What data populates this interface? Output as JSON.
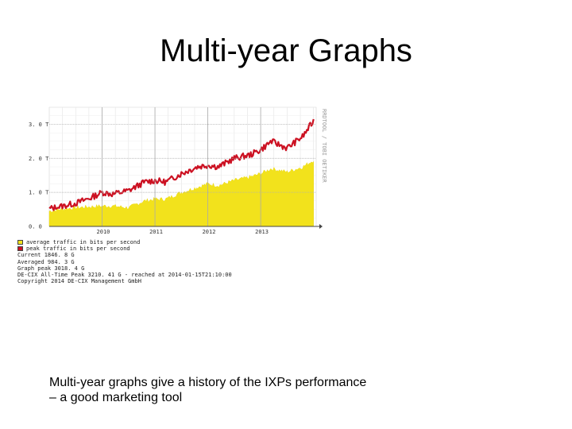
{
  "slide": {
    "title": "Multi-year Graphs",
    "caption_lines": [
      "Multi-year graphs give a history of the IXPs performance",
      "– a good marketing tool"
    ]
  },
  "chart_data": {
    "type": "area",
    "ylabel": "",
    "ylim": [
      0,
      3.5
    ],
    "y_ticks": [
      {
        "label": "0. 0",
        "value": 0
      },
      {
        "label": "1. 0 T",
        "value": 1
      },
      {
        "label": "2. 0 T",
        "value": 2
      },
      {
        "label": "3. 0 T",
        "value": 3
      }
    ],
    "x_range": [
      2009.0,
      2014.05
    ],
    "x_ticks": [
      {
        "label": "2010",
        "value": 2010
      },
      {
        "label": "2011",
        "value": 2011
      },
      {
        "label": "2012",
        "value": 2012
      },
      {
        "label": "2013",
        "value": 2013
      }
    ],
    "grid": true,
    "side_label": "RRDTOOL / TOBI OETIKER",
    "colors": {
      "average": "#f2e21c",
      "peak": "#cc1122"
    },
    "series": [
      {
        "name": "average traffic in bits per second",
        "x": [
          2009.0,
          2009.2,
          2009.5,
          2009.8,
          2010.0,
          2010.2,
          2010.5,
          2010.8,
          2011.0,
          2011.2,
          2011.5,
          2011.8,
          2012.0,
          2012.2,
          2012.5,
          2012.8,
          2013.0,
          2013.2,
          2013.5,
          2013.8,
          2014.0
        ],
        "values": [
          0.45,
          0.5,
          0.55,
          0.58,
          0.6,
          0.6,
          0.55,
          0.75,
          0.8,
          0.8,
          1.0,
          1.15,
          1.25,
          1.2,
          1.35,
          1.45,
          1.55,
          1.7,
          1.6,
          1.75,
          1.95
        ]
      },
      {
        "name": "peak traffic in bits per second",
        "x": [
          2009.0,
          2009.2,
          2009.5,
          2009.8,
          2010.0,
          2010.2,
          2010.5,
          2010.8,
          2011.0,
          2011.2,
          2011.5,
          2011.8,
          2012.0,
          2012.2,
          2012.5,
          2012.8,
          2013.0,
          2013.2,
          2013.5,
          2013.8,
          2014.0
        ],
        "values": [
          0.52,
          0.58,
          0.68,
          0.85,
          1.0,
          0.95,
          1.05,
          1.3,
          1.35,
          1.3,
          1.55,
          1.75,
          1.8,
          1.75,
          2.0,
          2.1,
          2.25,
          2.5,
          2.3,
          2.65,
          3.1
        ]
      }
    ],
    "legend": [
      {
        "label": "average traffic in bits per second",
        "color": "#f2e21c"
      },
      {
        "label": "peak traffic in bits per second",
        "color": "#cc1122"
      }
    ],
    "stats": [
      "Current 1846. 8 G",
      "Averaged 984. 3 G",
      "Graph peak 3018. 4 G",
      "DE-CIX All-Time Peak 3210. 41 G - reached at 2014-01-15T21:10:00",
      "Copyright 2014 DE-CIX Management GmbH"
    ]
  }
}
